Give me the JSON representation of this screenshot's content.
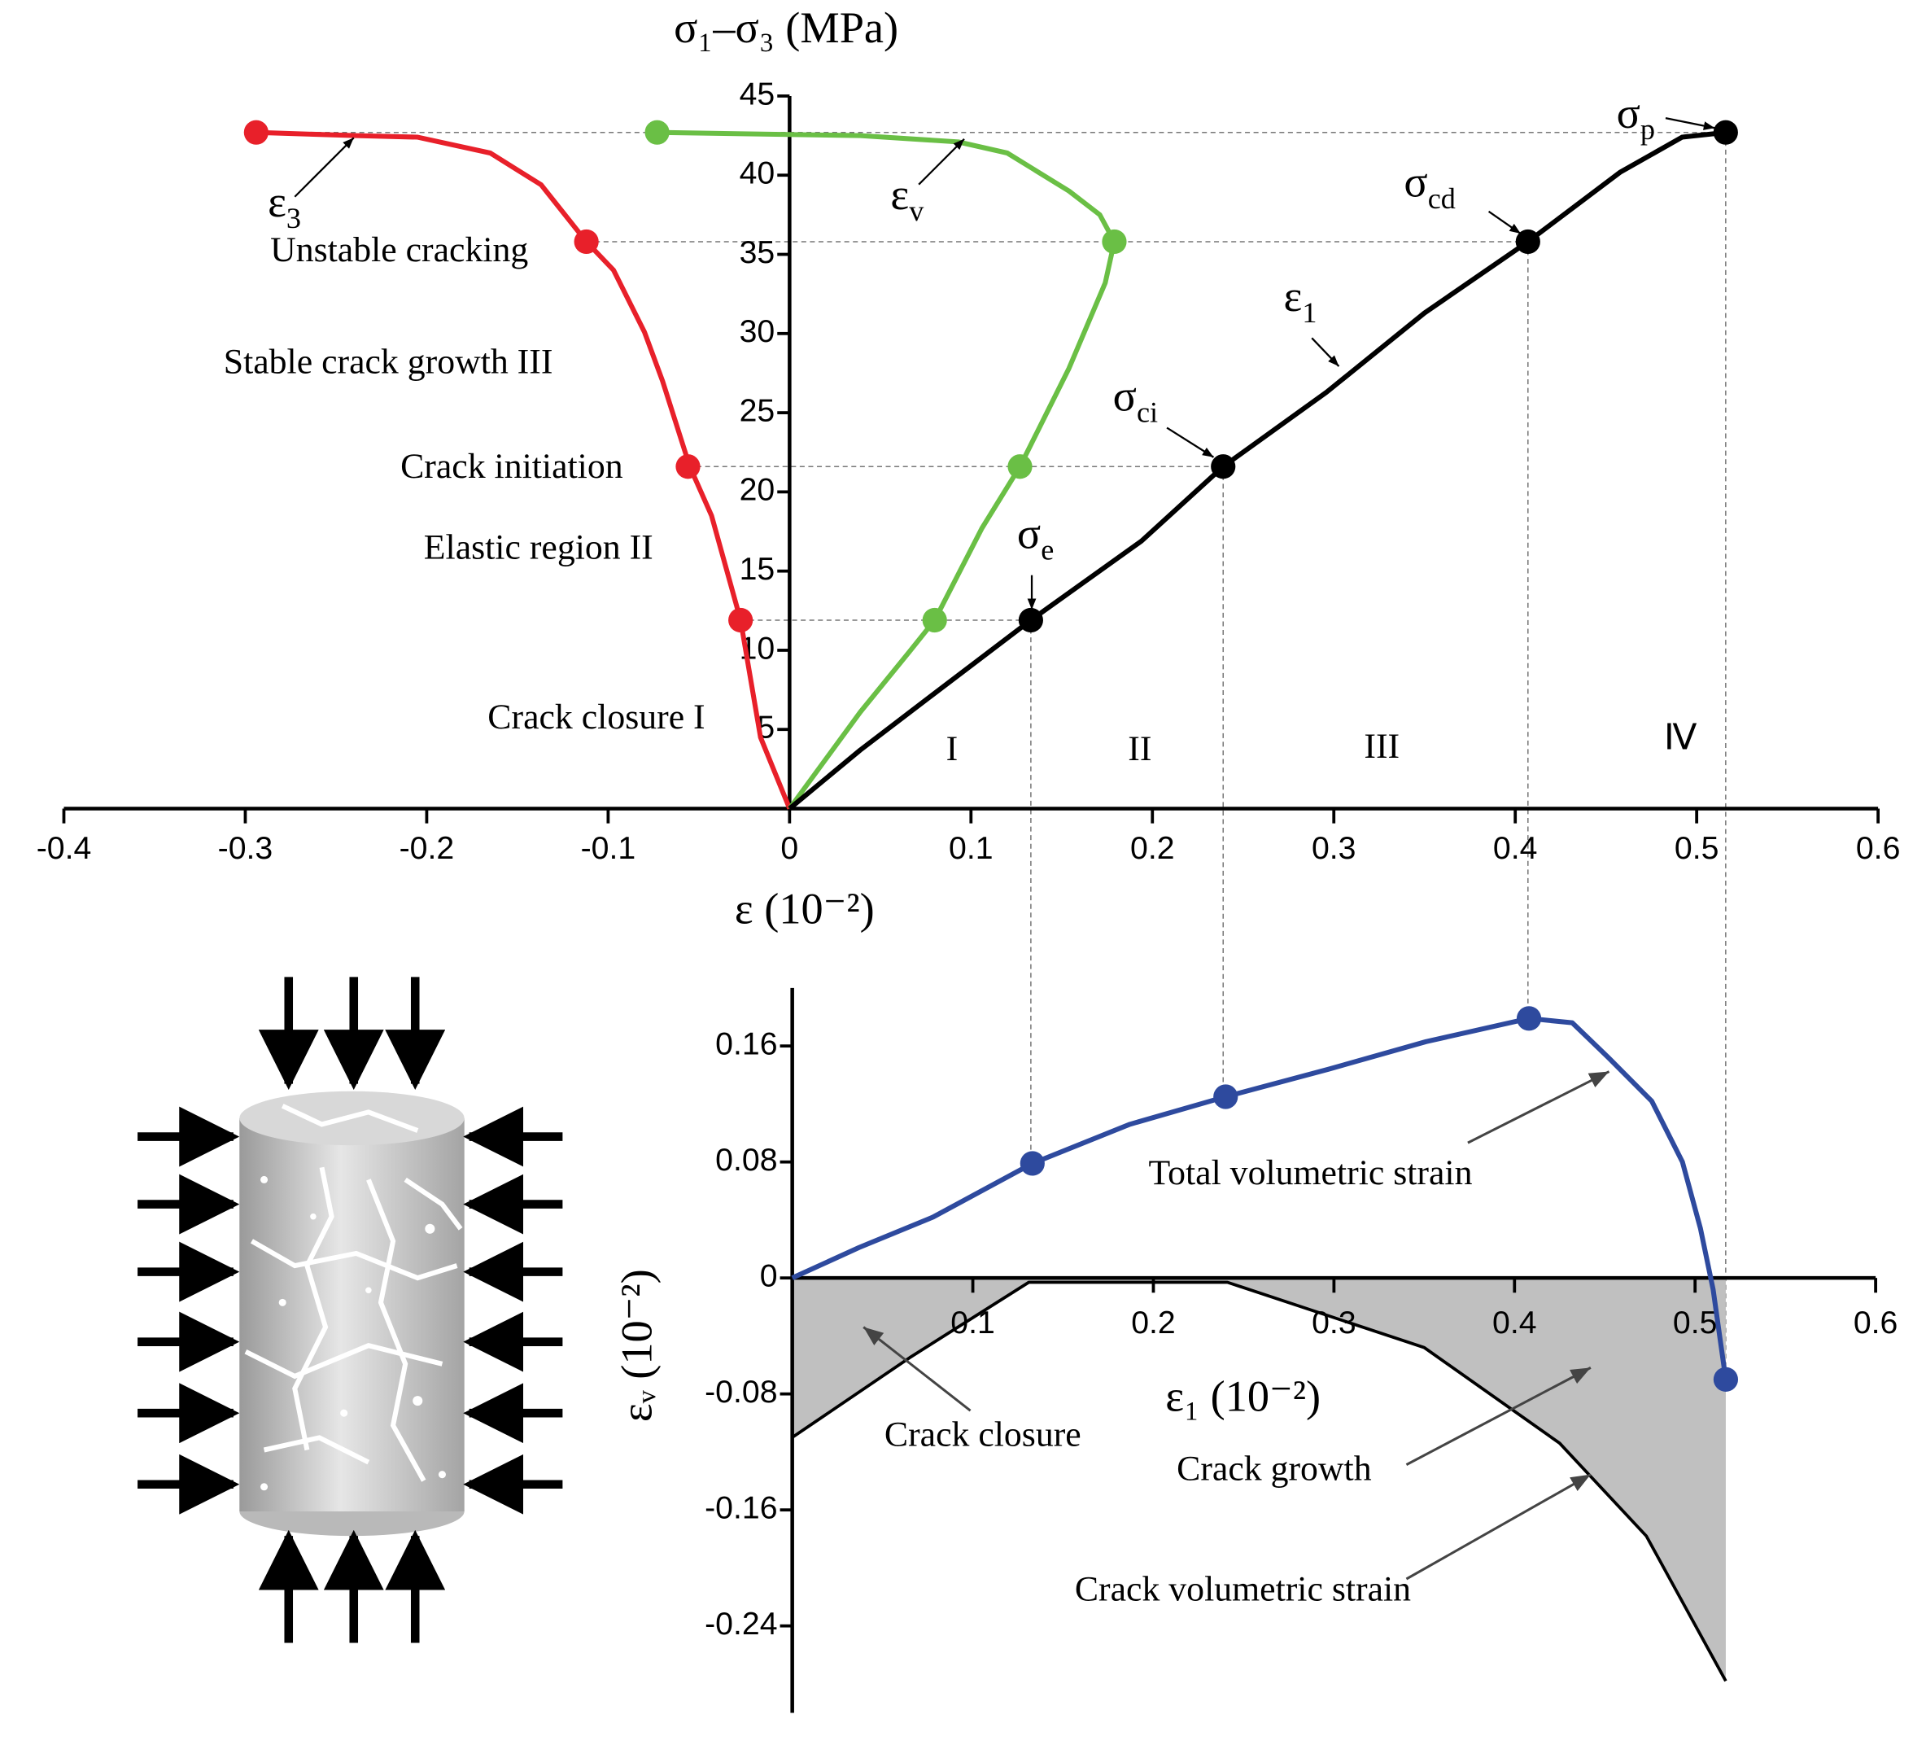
{
  "chart_data": [
    {
      "type": "line",
      "x_label": "ε (10⁻²)",
      "y_label": "σ₁–σ₃ (MPa)",
      "xlim": [
        -0.4,
        0.6
      ],
      "xticks": [
        -0.4,
        -0.3,
        -0.2,
        -0.1,
        0,
        0.1,
        0.2,
        0.3,
        0.4,
        0.5,
        0.6
      ],
      "ylim": [
        0,
        45
      ],
      "yticks": [
        5,
        10,
        15,
        20,
        25,
        30,
        35,
        40,
        45
      ],
      "series": [
        {
          "color": "#e8202a",
          "x": [
            0,
            -0.016,
            -0.027,
            -0.043,
            -0.055,
            -0.07,
            -0.08,
            -0.097,
            -0.112,
            -0.137,
            -0.165,
            -0.205,
            -0.239,
            -0.294
          ],
          "values": [
            0,
            4.5,
            11.9,
            18.5,
            21.6,
            27.0,
            30.1,
            34.0,
            35.8,
            39.4,
            41.4,
            42.4,
            42.5,
            42.7
          ],
          "markers": {
            "x": [
              -0.027,
              -0.056,
              -0.112,
              -0.294
            ],
            "values": [
              11.9,
              21.6,
              35.8,
              42.7
            ]
          }
        },
        {
          "color": "#6abf45",
          "x": [
            0,
            0.039,
            0.066,
            0.08,
            0.106,
            0.127,
            0.154,
            0.174,
            0.179,
            0.171,
            0.154,
            0.12,
            0.093,
            0.039,
            -0.073
          ],
          "values": [
            0,
            6.1,
            9.9,
            11.9,
            17.7,
            21.6,
            27.8,
            33.2,
            35.8,
            37.5,
            39.0,
            41.4,
            42.1,
            42.5,
            42.7
          ],
          "markers": {
            "x": [
              0.08,
              0.127,
              0.179,
              -0.073
            ],
            "values": [
              11.9,
              21.6,
              35.8,
              42.7
            ]
          }
        },
        {
          "color": "#000000",
          "x": [
            0,
            0.039,
            0.079,
            0.133,
            0.194,
            0.239,
            0.296,
            0.35,
            0.407,
            0.458,
            0.492,
            0.516
          ],
          "values": [
            0,
            3.7,
            7.2,
            11.9,
            16.9,
            21.6,
            26.3,
            31.3,
            35.8,
            40.2,
            42.4,
            42.7
          ],
          "markers": {
            "x": [
              0.133,
              0.239,
              0.407,
              0.516
            ],
            "values": [
              11.9,
              21.6,
              35.8,
              42.7
            ]
          }
        }
      ],
      "annotations": [
        {
          "text": "ε",
          "sub": "3"
        },
        {
          "text": "ε",
          "sub": "v"
        },
        {
          "text": "ε",
          "sub": "1"
        },
        {
          "text": "σ",
          "sub": "e"
        },
        {
          "text": "σ",
          "sub": "ci"
        },
        {
          "text": "σ",
          "sub": "cd"
        },
        {
          "text": "σ",
          "sub": "p"
        }
      ],
      "region_labels": [
        "Unstable cracking",
        "Stable crack growth III",
        "Crack initiation",
        "Elastic region II",
        "Crack closure I"
      ],
      "stage_labels": [
        "I",
        "II",
        "III",
        "Ⅳ"
      ]
    },
    {
      "type": "line",
      "x_label": "ε₁ (10⁻²)",
      "y_label": "εᵥ (10⁻²)",
      "xlim": [
        0,
        0.6
      ],
      "xticks": [
        0.1,
        0.2,
        0.3,
        0.4,
        0.5,
        0.6
      ],
      "ylim": [
        -0.3,
        0.2
      ],
      "yticks": [
        -0.24,
        -0.16,
        -0.08,
        0,
        0.08,
        0.16
      ],
      "series": [
        {
          "color": "#2e4a9e",
          "x": [
            0,
            0.037,
            0.078,
            0.133,
            0.187,
            0.24,
            0.297,
            0.351,
            0.408,
            0.432,
            0.452,
            0.476,
            0.493,
            0.503,
            0.51,
            0.517
          ],
          "values": [
            0,
            0.021,
            0.042,
            0.079,
            0.106,
            0.125,
            0.144,
            0.163,
            0.179,
            0.176,
            0.152,
            0.122,
            0.08,
            0.034,
            -0.008,
            -0.07
          ],
          "markers": {
            "x": [
              0.133,
              0.24,
              0.408,
              0.517
            ],
            "values": [
              0.079,
              0.125,
              0.179,
              -0.07
            ]
          }
        },
        {
          "color": "#000000",
          "fill": "#c0c0c0",
          "x": [
            0,
            0.065,
            0.131,
            0.241,
            0.35,
            0.425,
            0.473,
            0.517
          ],
          "values": [
            -0.11,
            -0.055,
            -0.003,
            -0.003,
            -0.048,
            -0.114,
            -0.178,
            -0.278
          ]
        }
      ],
      "annotations": [
        "Total volumetric strain",
        "Crack closure",
        "Crack growth",
        "Crack volumetric strain"
      ]
    }
  ]
}
